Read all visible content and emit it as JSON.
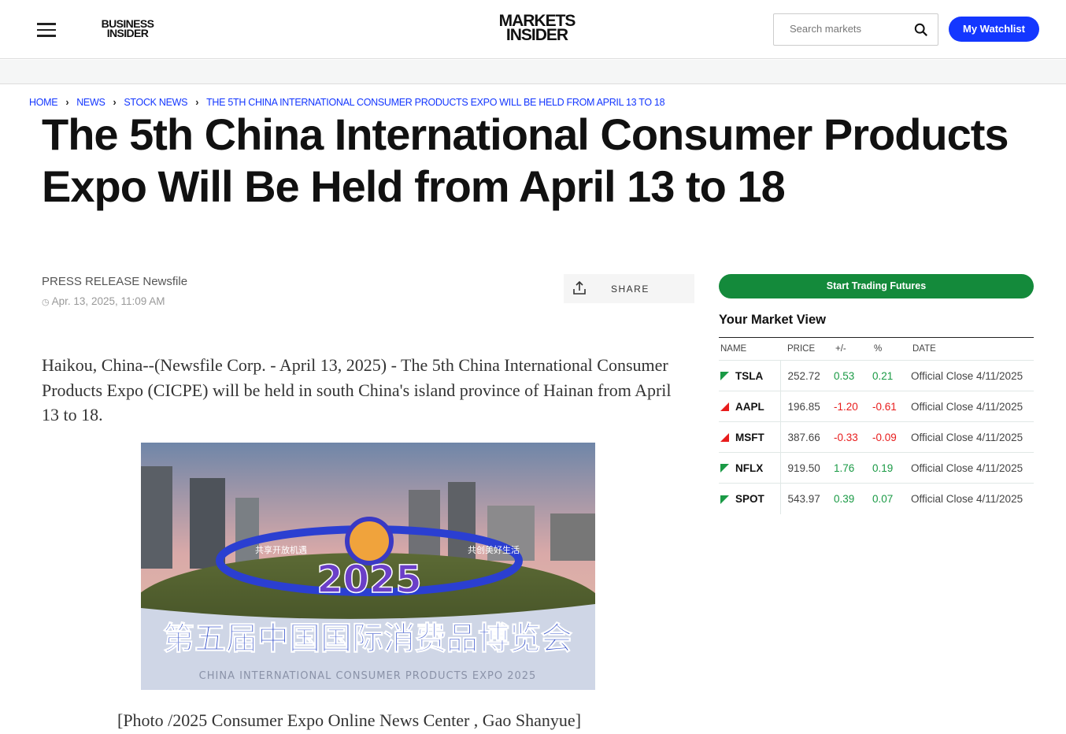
{
  "header": {
    "business_logo": "BUSINESS INSIDER",
    "business_logo_lines": [
      "BUSINESS",
      "INSIDER"
    ],
    "markets_logo_lines": [
      "MARKETS",
      "INSIDER"
    ],
    "search_placeholder": "Search markets",
    "watchlist_label": "My Watchlist"
  },
  "breadcrumb": [
    "HOME",
    "NEWS",
    "STOCK NEWS",
    "THE 5TH CHINA INTERNATIONAL CONSUMER PRODUCTS EXPO WILL BE HELD FROM APRIL 13 TO 18"
  ],
  "article": {
    "title": "The 5th China International Consumer Products Expo Will Be Held from April 13 to 18",
    "source": "PRESS RELEASE Newsfile",
    "date": "Apr. 13, 2025, 11:09 AM",
    "share_label": "SHARE",
    "lead": "Haikou, China--(Newsfile Corp. - April 13, 2025) - The 5th China International Consumer Products Expo (CICPE) will be held in south China's island province of Hainan from April 13 to 18.",
    "photo_text": {
      "main": "第五届中国国际消费品博览会",
      "sub": "CHINA INTERNATIONAL CONSUMER PRODUCTS EXPO 2025",
      "year": "2025",
      "left": "共享开放机遇",
      "right": "共创美好生活"
    },
    "caption": "[Photo /2025 Consumer Expo Online News Center , Gao Shanyue]"
  },
  "sidebar": {
    "cta_label": "Start Trading Futures",
    "market_view_title": "Your Market View",
    "columns": [
      "NAME",
      "PRICE",
      "+/-",
      "%",
      "DATE"
    ],
    "colors": {
      "up": "#1a9a45",
      "down": "#e81c1c"
    },
    "rows": [
      {
        "name": "TSLA",
        "price": "252.72",
        "change": "0.53",
        "pct": "0.21",
        "date": "Official Close 4/11/2025",
        "dir": "up"
      },
      {
        "name": "AAPL",
        "price": "196.85",
        "change": "-1.20",
        "pct": "-0.61",
        "date": "Official Close 4/11/2025",
        "dir": "down"
      },
      {
        "name": "MSFT",
        "price": "387.66",
        "change": "-0.33",
        "pct": "-0.09",
        "date": "Official Close 4/11/2025",
        "dir": "down"
      },
      {
        "name": "NFLX",
        "price": "919.50",
        "change": "1.76",
        "pct": "0.19",
        "date": "Official Close 4/11/2025",
        "dir": "up"
      },
      {
        "name": "SPOT",
        "price": "543.97",
        "change": "0.39",
        "pct": "0.07",
        "date": "Official Close 4/11/2025",
        "dir": "up"
      }
    ]
  }
}
